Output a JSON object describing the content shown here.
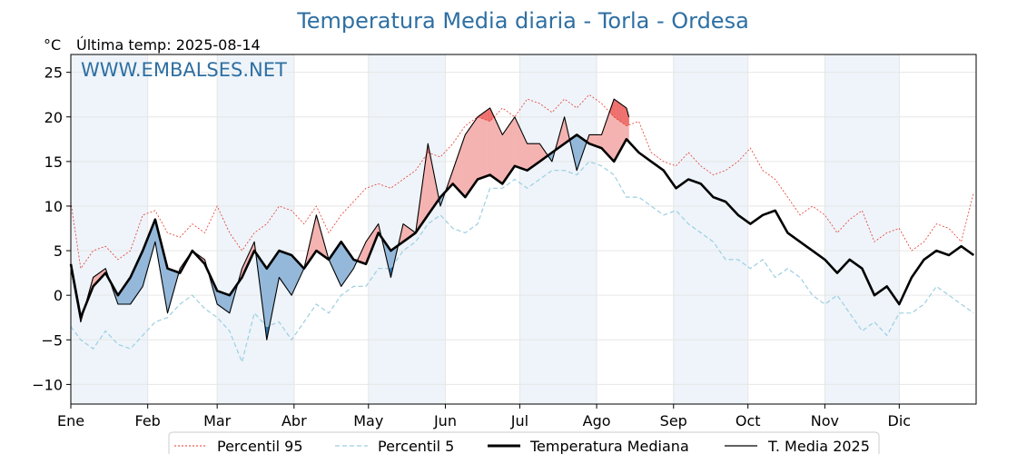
{
  "chart_data": {
    "type": "line",
    "title": "Temperatura Media diaria - Torla - Ordesa",
    "unit": "°C",
    "subtitle": "Última temp: 2025-08-14",
    "watermark": "WWW.EMBALSES.NET",
    "ylim": [
      -12.2,
      27
    ],
    "yticks": [
      -10,
      -5,
      0,
      5,
      10,
      15,
      20,
      25
    ],
    "months": [
      "Ene",
      "Feb",
      "Mar",
      "Abr",
      "May",
      "Jun",
      "Jul",
      "Ago",
      "Sep",
      "Oct",
      "Nov",
      "Dic"
    ],
    "month_start_days": [
      1,
      32,
      60,
      91,
      121,
      152,
      182,
      213,
      244,
      274,
      305,
      335
    ],
    "days_in_year": 365,
    "grid": true,
    "legend_position": "bottom",
    "series": [
      {
        "name": "Percentil 95",
        "color": "#e8392b",
        "style": "dotted",
        "x": [
          1,
          5,
          10,
          15,
          20,
          25,
          30,
          35,
          40,
          45,
          50,
          55,
          60,
          65,
          70,
          75,
          80,
          85,
          90,
          95,
          100,
          105,
          110,
          115,
          120,
          125,
          130,
          135,
          140,
          145,
          150,
          155,
          160,
          165,
          170,
          175,
          180,
          185,
          190,
          195,
          200,
          205,
          210,
          215,
          220,
          225,
          230,
          235,
          240,
          245,
          250,
          255,
          260,
          265,
          270,
          275,
          280,
          285,
          290,
          295,
          300,
          305,
          310,
          315,
          320,
          325,
          330,
          335,
          340,
          345,
          350,
          355,
          360,
          365
        ],
        "y": [
          10.5,
          3,
          5,
          5.5,
          4,
          5,
          9,
          9.5,
          7,
          6.5,
          8,
          7,
          10,
          7,
          5,
          7,
          8,
          10,
          9.5,
          8,
          10,
          7,
          9,
          10.5,
          12,
          12.5,
          12,
          13,
          14,
          16,
          15.5,
          17,
          19,
          20,
          19.5,
          21,
          20,
          22,
          21.5,
          20.5,
          22,
          21,
          22.5,
          21.5,
          20,
          19,
          19.5,
          16,
          15,
          14.5,
          16,
          14.5,
          13.5,
          14,
          15,
          16.5,
          14,
          13,
          11,
          9,
          10,
          9,
          7,
          8.5,
          9.5,
          6,
          7,
          7.5,
          5,
          6,
          8,
          7.5,
          6,
          11.5
        ]
      },
      {
        "name": "Percentil 5",
        "color": "#9ccfe1",
        "style": "dashed",
        "x": [
          1,
          5,
          10,
          15,
          20,
          25,
          30,
          35,
          40,
          45,
          50,
          55,
          60,
          65,
          70,
          75,
          80,
          85,
          90,
          95,
          100,
          105,
          110,
          115,
          120,
          125,
          130,
          135,
          140,
          145,
          150,
          155,
          160,
          165,
          170,
          175,
          180,
          185,
          190,
          195,
          200,
          205,
          210,
          215,
          220,
          225,
          230,
          235,
          240,
          245,
          250,
          255,
          260,
          265,
          270,
          275,
          280,
          285,
          290,
          295,
          300,
          305,
          310,
          315,
          320,
          325,
          330,
          335,
          340,
          345,
          350,
          355,
          360,
          365
        ],
        "y": [
          -3.5,
          -5,
          -6,
          -4,
          -5.5,
          -6,
          -4.5,
          -3,
          -2.5,
          -1,
          0,
          -1.5,
          -2.5,
          -4,
          -7.5,
          -2,
          -3.5,
          -3,
          -5,
          -3,
          -1,
          -2,
          0,
          1,
          1,
          3,
          3,
          5,
          6,
          8,
          9,
          7.5,
          7,
          8,
          12,
          12,
          13,
          12,
          13,
          14,
          14,
          13.5,
          15,
          14.5,
          13.5,
          11,
          11,
          10,
          9,
          9.5,
          8,
          7,
          6,
          4,
          4,
          3,
          4,
          2,
          3,
          2,
          0,
          -1,
          0,
          -2,
          -4,
          -3,
          -4.5,
          -2,
          -2,
          -1,
          1,
          0,
          -1,
          -2
        ]
      },
      {
        "name": "Temperatura Mediana",
        "color": "#000000",
        "style": "solid-thick",
        "x": [
          1,
          5,
          10,
          15,
          20,
          25,
          30,
          35,
          40,
          45,
          50,
          55,
          60,
          65,
          70,
          75,
          80,
          85,
          90,
          95,
          100,
          105,
          110,
          115,
          120,
          125,
          130,
          135,
          140,
          145,
          150,
          155,
          160,
          165,
          170,
          175,
          180,
          185,
          190,
          195,
          200,
          205,
          210,
          215,
          220,
          225,
          230,
          235,
          240,
          245,
          250,
          255,
          260,
          265,
          270,
          275,
          280,
          285,
          290,
          295,
          300,
          305,
          310,
          315,
          320,
          325,
          330,
          335,
          340,
          345,
          350,
          355,
          360,
          365
        ],
        "y": [
          3.5,
          -2.5,
          1,
          2.5,
          0,
          2,
          5,
          8.5,
          3,
          2.5,
          5,
          3.5,
          0.5,
          0,
          2,
          5,
          3,
          5,
          4.5,
          3,
          5,
          4,
          6,
          4,
          3.5,
          7,
          5,
          6,
          7,
          9,
          11,
          12.5,
          11,
          13,
          13.5,
          12.5,
          14.5,
          14,
          15,
          16,
          17,
          18,
          17,
          16.5,
          15,
          17.5,
          16,
          15,
          14,
          12,
          13,
          12.5,
          11,
          10.5,
          9,
          8,
          9,
          9.5,
          7,
          6,
          5,
          4,
          2.5,
          4,
          3,
          0,
          1,
          -1,
          2,
          4,
          5,
          4.5,
          5.5,
          4.5
        ]
      },
      {
        "name": "T. Media 2025",
        "color": "#000000",
        "style": "solid",
        "x": [
          1,
          5,
          10,
          15,
          20,
          25,
          30,
          35,
          40,
          45,
          50,
          55,
          60,
          65,
          70,
          75,
          80,
          85,
          90,
          95,
          100,
          105,
          110,
          115,
          120,
          125,
          130,
          135,
          140,
          145,
          150,
          155,
          160,
          165,
          170,
          175,
          180,
          185,
          190,
          195,
          200,
          205,
          210,
          215,
          220,
          225,
          226
        ],
        "y": [
          3,
          -3,
          2,
          3,
          -1,
          -1,
          1,
          6,
          -2,
          3,
          5,
          4,
          -1,
          -2,
          3,
          6,
          -5,
          2,
          0,
          3,
          9,
          4,
          1,
          3,
          6,
          8,
          2,
          8,
          7,
          17,
          10,
          14,
          18,
          20,
          21,
          18,
          20,
          17,
          17,
          15,
          20,
          14,
          18,
          18,
          22,
          21,
          20
        ]
      }
    ]
  },
  "legend": {
    "p95": "Percentil 95",
    "p5": "Percentil 5",
    "median": "Temperatura Mediana",
    "current": "T. Media 2025"
  },
  "colors": {
    "title": "#2e6fa2",
    "above_median": "#f4b3b1",
    "above_p95": "#ee6f6c",
    "below_median": "#94b8d9",
    "below_p5": "#2f6fa9",
    "month_shade": "#eef4fa"
  }
}
